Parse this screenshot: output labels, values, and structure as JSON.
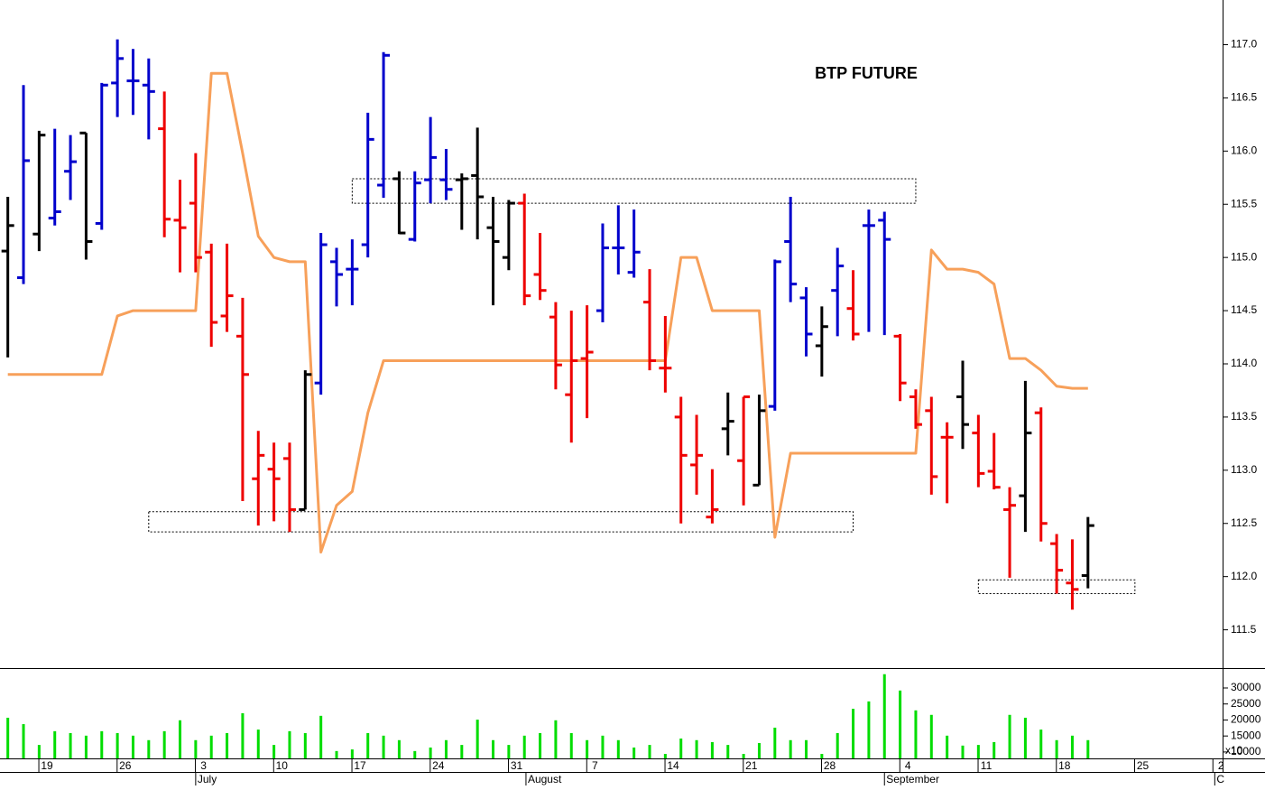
{
  "chart_data": [
    {
      "type": "ohlc",
      "title": "BTP FUTURE",
      "x": [
        0,
        1,
        2,
        3,
        4,
        5,
        6,
        7,
        8,
        9,
        10,
        11,
        12,
        13,
        14,
        15,
        16,
        17,
        18,
        19,
        20,
        21,
        22,
        23,
        24,
        25,
        26,
        27,
        28,
        29,
        30,
        31,
        32,
        33,
        34,
        35,
        36,
        37,
        38,
        39,
        40,
        41,
        42,
        43,
        44,
        45,
        46,
        47,
        48,
        49,
        50,
        51,
        52,
        53,
        54,
        55,
        56,
        57,
        58,
        59,
        60,
        61,
        62,
        63,
        64,
        65,
        66,
        67,
        68,
        69
      ],
      "open": [
        115.06,
        114.81,
        115.22,
        115.37,
        115.81,
        116.17,
        115.32,
        116.64,
        116.66,
        116.62,
        116.21,
        115.35,
        115.51,
        115.05,
        114.45,
        114.26,
        112.92,
        113.01,
        113.11,
        112.63,
        113.82,
        114.96,
        114.89,
        115.12,
        115.68,
        115.74,
        115.17,
        115.73,
        115.73,
        115.73,
        115.77,
        115.28,
        115.0,
        115.51,
        114.84,
        114.44,
        113.71,
        114.05,
        114.5,
        115.09,
        114.86,
        114.58,
        113.96,
        113.5,
        113.05,
        112.56,
        113.39,
        113.09,
        112.86,
        113.6,
        115.15,
        114.62,
        114.17,
        114.69,
        114.52,
        115.3,
        115.35,
        114.26,
        113.69,
        113.56,
        113.31,
        113.69,
        113.35,
        112.99,
        112.63,
        112.76,
        113.54,
        112.31,
        111.94,
        112.01
      ],
      "high": [
        115.57,
        116.62,
        116.19,
        116.21,
        116.15,
        116.17,
        116.64,
        117.05,
        116.96,
        116.87,
        116.56,
        115.73,
        115.98,
        115.13,
        115.13,
        114.62,
        113.37,
        113.26,
        113.26,
        113.94,
        115.23,
        115.09,
        115.17,
        116.36,
        116.93,
        115.81,
        115.81,
        116.32,
        116.02,
        115.79,
        116.22,
        115.57,
        115.54,
        115.6,
        115.23,
        114.58,
        114.5,
        114.55,
        115.32,
        115.49,
        115.45,
        114.89,
        114.45,
        113.69,
        113.52,
        113.01,
        113.73,
        113.69,
        113.71,
        114.98,
        115.57,
        114.72,
        114.54,
        115.09,
        114.88,
        115.45,
        115.43,
        114.28,
        113.76,
        113.69,
        113.45,
        114.03,
        113.52,
        113.35,
        112.84,
        113.84,
        113.59,
        112.4,
        112.35,
        112.56
      ],
      "low": [
        114.06,
        114.75,
        115.06,
        115.3,
        115.54,
        114.98,
        115.26,
        116.32,
        116.34,
        116.11,
        115.19,
        114.86,
        114.86,
        114.16,
        114.3,
        112.71,
        112.48,
        112.52,
        112.42,
        112.63,
        113.71,
        114.54,
        114.55,
        115.0,
        115.56,
        115.22,
        115.15,
        115.51,
        115.54,
        115.26,
        115.17,
        114.55,
        114.88,
        114.55,
        114.6,
        113.76,
        113.26,
        113.49,
        114.39,
        114.84,
        114.81,
        113.94,
        113.73,
        112.5,
        112.77,
        112.5,
        113.14,
        112.67,
        112.86,
        113.56,
        114.58,
        114.07,
        113.88,
        114.26,
        114.22,
        114.3,
        114.27,
        113.65,
        113.39,
        112.77,
        112.69,
        113.2,
        112.84,
        112.82,
        111.99,
        112.42,
        112.33,
        111.84,
        111.69,
        111.89
      ],
      "close": [
        115.3,
        115.91,
        116.15,
        115.43,
        115.9,
        115.15,
        116.62,
        116.87,
        116.66,
        116.56,
        115.36,
        115.28,
        115.0,
        114.39,
        114.64,
        113.9,
        113.14,
        112.92,
        112.63,
        113.9,
        115.12,
        114.84,
        114.89,
        116.11,
        116.9,
        115.23,
        115.7,
        115.94,
        115.64,
        115.74,
        115.57,
        115.15,
        115.51,
        114.64,
        114.69,
        113.99,
        114.03,
        114.11,
        115.09,
        115.09,
        115.05,
        114.03,
        113.96,
        113.14,
        113.14,
        112.63,
        113.46,
        113.69,
        113.56,
        114.96,
        114.75,
        114.28,
        114.35,
        114.92,
        114.28,
        115.3,
        115.17,
        113.82,
        113.43,
        112.94,
        113.31,
        113.43,
        112.97,
        112.84,
        112.67,
        113.35,
        112.5,
        112.06,
        111.88,
        112.48
      ],
      "colors": [
        "#000000",
        "#0000cc",
        "#000000",
        "#0000cc",
        "#0000cc",
        "#000000",
        "#0000cc",
        "#0000cc",
        "#0000cc",
        "#0000cc",
        "#ee0000",
        "#ee0000",
        "#ee0000",
        "#ee0000",
        "#ee0000",
        "#ee0000",
        "#ee0000",
        "#ee0000",
        "#ee0000",
        "#000000",
        "#0000cc",
        "#0000cc",
        "#0000cc",
        "#0000cc",
        "#0000cc",
        "#000000",
        "#0000cc",
        "#0000cc",
        "#0000cc",
        "#000000",
        "#000000",
        "#000000",
        "#000000",
        "#ee0000",
        "#ee0000",
        "#ee0000",
        "#ee0000",
        "#ee0000",
        "#0000cc",
        "#0000cc",
        "#0000cc",
        "#ee0000",
        "#ee0000",
        "#ee0000",
        "#ee0000",
        "#ee0000",
        "#000000",
        "#ee0000",
        "#000000",
        "#0000cc",
        "#0000cc",
        "#0000cc",
        "#000000",
        "#0000cc",
        "#ee0000",
        "#0000cc",
        "#0000cc",
        "#ee0000",
        "#ee0000",
        "#ee0000",
        "#ee0000",
        "#000000",
        "#ee0000",
        "#ee0000",
        "#ee0000",
        "#000000",
        "#ee0000",
        "#ee0000",
        "#ee0000",
        "#000000"
      ],
      "line": {
        "color": "#f7a05a",
        "values": [
          113.9,
          113.9,
          113.9,
          113.9,
          113.9,
          113.9,
          113.9,
          114.45,
          114.5,
          114.5,
          114.5,
          114.5,
          114.5,
          116.73,
          116.73,
          115.98,
          115.2,
          115.0,
          114.96,
          114.96,
          112.23,
          112.67,
          112.8,
          113.54,
          114.03,
          114.03,
          114.03,
          114.03,
          114.03,
          114.03,
          114.03,
          114.03,
          114.03,
          114.03,
          114.03,
          114.03,
          114.03,
          114.03,
          114.03,
          114.03,
          114.03,
          114.03,
          114.03,
          115.0,
          115.0,
          114.5,
          114.5,
          114.5,
          114.5,
          112.37,
          113.16,
          113.16,
          113.16,
          113.16,
          113.16,
          113.16,
          113.16,
          113.16,
          113.16,
          115.07,
          114.89,
          114.89,
          114.86,
          114.75,
          114.05,
          114.05,
          113.94,
          113.79,
          113.77,
          113.77
        ]
      },
      "zones": [
        {
          "x": [
            22,
            58
          ],
          "y": [
            115.51,
            115.74
          ]
        },
        {
          "x": [
            9,
            54
          ],
          "y": [
            112.42,
            112.61
          ]
        },
        {
          "x": [
            62,
            72
          ],
          "y": [
            111.84,
            111.97
          ]
        }
      ],
      "xlim": [
        -0.5,
        77.6
      ],
      "ylim": [
        111.14,
        117.42
      ],
      "yticks": [
        {
          "value": 111.5,
          "label": "111.5"
        },
        {
          "value": 112,
          "label": "112.0"
        },
        {
          "value": 112.5,
          "label": "112.5"
        },
        {
          "value": 113,
          "label": "113.0"
        },
        {
          "value": 113.5,
          "label": "113.5"
        },
        {
          "value": 114,
          "label": "114.0"
        },
        {
          "value": 114.5,
          "label": "114.5"
        },
        {
          "value": 115,
          "label": "115.0"
        },
        {
          "value": 115.5,
          "label": "115.5"
        },
        {
          "value": 116,
          "label": "116.0"
        },
        {
          "value": 116.5,
          "label": "116.5"
        },
        {
          "value": 117,
          "label": "117.0"
        }
      ]
    },
    {
      "type": "bar",
      "color": "#00dd00",
      "axis_note": "x10",
      "values": [
        20700,
        18700,
        12200,
        16500,
        15900,
        15100,
        16500,
        15900,
        15100,
        13700,
        16500,
        19900,
        13700,
        15100,
        15900,
        22100,
        17000,
        12200,
        16500,
        15900,
        21300,
        10300,
        10800,
        15900,
        15100,
        13700,
        10300,
        11400,
        13700,
        12200,
        20100,
        13700,
        12200,
        15100,
        15900,
        19900,
        15900,
        13700,
        15100,
        13700,
        11400,
        12200,
        9400,
        14200,
        13700,
        13100,
        12200,
        9400,
        12800,
        17600,
        13700,
        13700,
        9400,
        15900,
        23500,
        25800,
        34300,
        29200,
        23000,
        21600,
        15100,
        12000,
        12200,
        13100,
        21600,
        20700,
        17000,
        13700,
        15100,
        13700
      ],
      "ylim": [
        8000,
        36200
      ],
      "yticks": [
        10000,
        15000,
        20000,
        25000,
        30000
      ],
      "xlim": [
        -0.5,
        77.6
      ],
      "xticks": [
        {
          "value": 2.5,
          "label": "19"
        },
        {
          "value": 7.5,
          "label": "26"
        },
        {
          "value": 12.5,
          "label": "3"
        },
        {
          "value": 17.5,
          "label": "10"
        },
        {
          "value": 22.5,
          "label": "17"
        },
        {
          "value": 27.5,
          "label": "24"
        },
        {
          "value": 32.5,
          "label": "31"
        },
        {
          "value": 37.5,
          "label": "7"
        },
        {
          "value": 42.5,
          "label": "14"
        },
        {
          "value": 47.5,
          "label": "21"
        },
        {
          "value": 52.5,
          "label": "28"
        },
        {
          "value": 57.5,
          "label": "4"
        },
        {
          "value": 62.5,
          "label": "11"
        },
        {
          "value": 67.5,
          "label": "18"
        },
        {
          "value": 72.5,
          "label": "25"
        },
        {
          "value": 77.5,
          "label": "2"
        }
      ],
      "months": [
        {
          "value": 12,
          "label": "July"
        },
        {
          "value": 33.1,
          "label": "August"
        },
        {
          "value": 56,
          "label": "September"
        },
        {
          "value": 77.1,
          "label": "C"
        }
      ]
    }
  ]
}
